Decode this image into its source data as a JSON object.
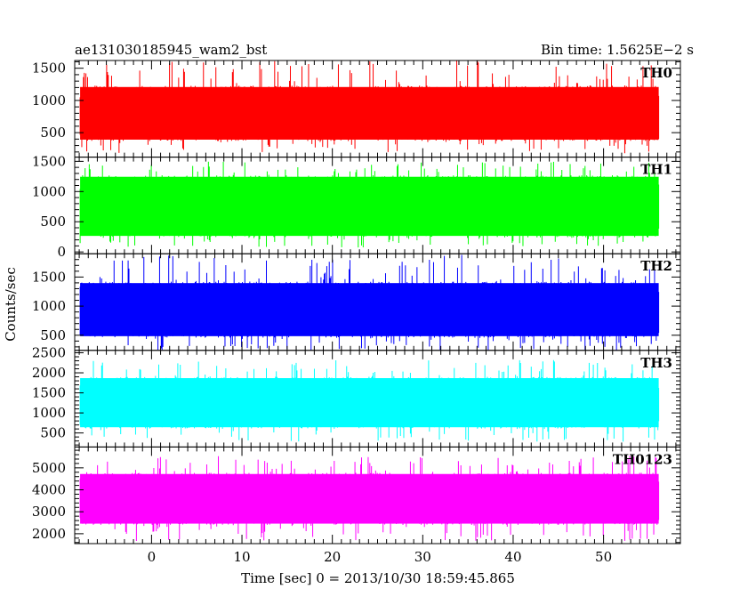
{
  "chart_data": {
    "type": "line",
    "title": "ae131030185945_wam2_bst",
    "bin_time": "Bin time: 1.5625E−2 s",
    "xlabel": "Time [sec] 0 = 2013/10/30 18:59:45.865",
    "ylabel": "Counts/sec",
    "xlim": [
      -8.5,
      58.5
    ],
    "x_data_range": [
      -7.9,
      56.1
    ],
    "x_ticks": [
      0,
      10,
      20,
      30,
      40,
      50
    ],
    "x_tick_labels": [
      "0",
      "10",
      "20",
      "30",
      "40",
      "50"
    ],
    "grid": false,
    "panels": [
      {
        "name": "TH0",
        "color": "#ff0000",
        "ylim": [
          120,
          1620
        ],
        "y_ticks": [
          500,
          1000,
          1500
        ],
        "y_tick_labels": [
          "500",
          "1000",
          "1500"
        ],
        "typical_low": 370,
        "typical_high": 1230,
        "min": 180,
        "max": 1620
      },
      {
        "name": "TH1",
        "color": "#00ff00",
        "ylim": [
          -30,
          1570
        ],
        "y_ticks": [
          0,
          500,
          1000,
          1500
        ],
        "y_tick_labels": [
          "0",
          "500",
          "1000",
          "1500"
        ],
        "typical_low": 240,
        "typical_high": 1270,
        "min": 70,
        "max": 1500
      },
      {
        "name": "TH2",
        "color": "#0000ff",
        "ylim": [
          240,
          1900
        ],
        "y_ticks": [
          500,
          1000,
          1500
        ],
        "y_tick_labels": [
          "500",
          "1000",
          "1500"
        ],
        "typical_low": 460,
        "typical_high": 1420,
        "min": 240,
        "max": 1880
      },
      {
        "name": "TH3",
        "color": "#00ffff",
        "ylim": [
          150,
          2560
        ],
        "y_ticks": [
          500,
          1000,
          1500,
          2000,
          2500
        ],
        "y_tick_labels": [
          "500",
          "1000",
          "1500",
          "2000",
          "2500"
        ],
        "typical_low": 610,
        "typical_high": 1900,
        "min": 280,
        "max": 2330
      },
      {
        "name": "TH0123",
        "color": "#ff00ff",
        "ylim": [
          1550,
          5950
        ],
        "y_ticks": [
          2000,
          3000,
          4000,
          5000
        ],
        "y_tick_labels": [
          "2000",
          "3000",
          "4000",
          "5000"
        ],
        "typical_low": 2400,
        "typical_high": 4780,
        "min": 1650,
        "max": 5550
      }
    ]
  }
}
